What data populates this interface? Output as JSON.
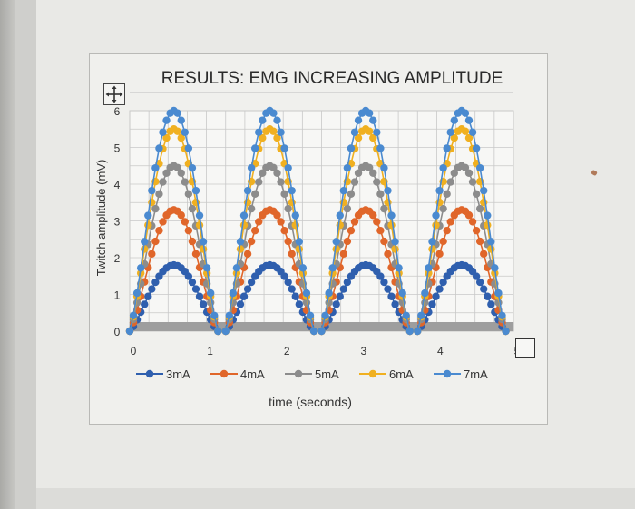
{
  "chart_data": {
    "type": "scatter",
    "title": "RESULTS: EMG INCREASING AMPLITUDE",
    "xlabel": "time (seconds)",
    "ylabel": "Twitch amplitude (mV)",
    "xlim": [
      0,
      5
    ],
    "ylim": [
      0,
      6
    ],
    "x_ticks": [
      "0",
      "1",
      "2",
      "3",
      "4",
      "5"
    ],
    "y_ticks": [
      "0",
      "1",
      "2",
      "3",
      "4",
      "5",
      "6"
    ],
    "grid": true,
    "legend_position": "bottom",
    "markers": "circle with connecting line",
    "pulse_period_s": 1.2,
    "pulse_width_s": 1.15,
    "pulse_starts_s": [
      0.0,
      1.25,
      2.5,
      3.75
    ],
    "series": [
      {
        "name": "3mA",
        "color": "#2f5fae",
        "peak": 1.8
      },
      {
        "name": "4mA",
        "color": "#e0662a",
        "peak": 3.3
      },
      {
        "name": "5mA",
        "color": "#8c8c8c",
        "peak": 4.5
      },
      {
        "name": "6mA",
        "color": "#f0b020",
        "peak": 5.5
      },
      {
        "name": "7mA",
        "color": "#4a8ad0",
        "peak": 6.0
      }
    ],
    "baseline_bar_value": 0.1
  },
  "colors": {
    "grid": "#c8c8c8",
    "axis_text": "#333333",
    "baseline_bar": "#9e9e9e"
  }
}
